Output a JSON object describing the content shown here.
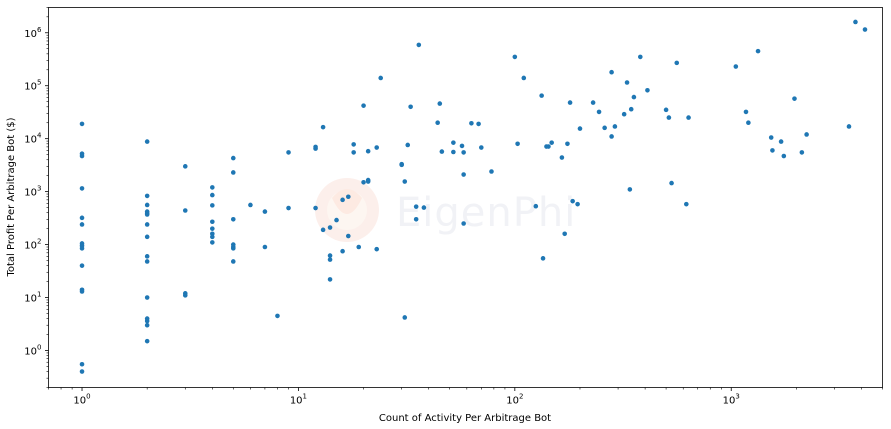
{
  "chart_data": {
    "type": "scatter",
    "title": "",
    "xlabel": "Count of Activity Per Arbitrage Bot",
    "ylabel": "Total Profit Per Arbitrage Bot ($)",
    "xscale": "log",
    "yscale": "log",
    "xlim": [
      0.7,
      5000
    ],
    "ylim": [
      0.2,
      3000000
    ],
    "x_ticks": [
      {
        "value": 1,
        "base": "10",
        "exp": "0"
      },
      {
        "value": 10,
        "base": "10",
        "exp": "1"
      },
      {
        "value": 100,
        "base": "10",
        "exp": "2"
      },
      {
        "value": 1000,
        "base": "10",
        "exp": "3"
      }
    ],
    "y_ticks": [
      {
        "value": 1,
        "base": "10",
        "exp": "0"
      },
      {
        "value": 10,
        "base": "10",
        "exp": "1"
      },
      {
        "value": 100,
        "base": "10",
        "exp": "2"
      },
      {
        "value": 1000,
        "base": "10",
        "exp": "3"
      },
      {
        "value": 10000,
        "base": "10",
        "exp": "4"
      },
      {
        "value": 100000,
        "base": "10",
        "exp": "5"
      },
      {
        "value": 1000000,
        "base": "10",
        "exp": "6"
      }
    ],
    "grid": false,
    "legend": "none",
    "marker_color": "#1f77b4",
    "watermark": "EigenPhi",
    "points": [
      [
        1,
        19000
      ],
      [
        1,
        5200
      ],
      [
        1,
        4700
      ],
      [
        1,
        1150
      ],
      [
        1,
        320
      ],
      [
        1,
        240
      ],
      [
        1,
        105
      ],
      [
        1,
        95
      ],
      [
        1,
        85
      ],
      [
        1,
        40
      ],
      [
        1,
        14
      ],
      [
        1,
        13
      ],
      [
        1,
        0.55
      ],
      [
        1,
        0.4
      ],
      [
        2,
        8800
      ],
      [
        2,
        830
      ],
      [
        2,
        560
      ],
      [
        2,
        420
      ],
      [
        2,
        390
      ],
      [
        2,
        370
      ],
      [
        2,
        240
      ],
      [
        2,
        140
      ],
      [
        2,
        60
      ],
      [
        2,
        48
      ],
      [
        2,
        10
      ],
      [
        2,
        4
      ],
      [
        2,
        3.6
      ],
      [
        2,
        3
      ],
      [
        2,
        1.5
      ],
      [
        3,
        3000
      ],
      [
        3,
        440
      ],
      [
        3,
        12
      ],
      [
        3,
        11
      ],
      [
        4,
        1200
      ],
      [
        4,
        860
      ],
      [
        4,
        550
      ],
      [
        4,
        270
      ],
      [
        4,
        200
      ],
      [
        4,
        160
      ],
      [
        4,
        140
      ],
      [
        4,
        110
      ],
      [
        5,
        4300
      ],
      [
        5,
        2300
      ],
      [
        5,
        300
      ],
      [
        5,
        100
      ],
      [
        5,
        90
      ],
      [
        5,
        85
      ],
      [
        5,
        48
      ],
      [
        6,
        560
      ],
      [
        7,
        420
      ],
      [
        7,
        90
      ],
      [
        8,
        4.5
      ],
      [
        9,
        5500
      ],
      [
        9,
        490
      ],
      [
        12,
        7000
      ],
      [
        12,
        6500
      ],
      [
        12,
        490
      ],
      [
        13,
        16500
      ],
      [
        13,
        190
      ],
      [
        14,
        210
      ],
      [
        14,
        62
      ],
      [
        14,
        52
      ],
      [
        14,
        22
      ],
      [
        15,
        290
      ],
      [
        16,
        700
      ],
      [
        16,
        75
      ],
      [
        17,
        800
      ],
      [
        17,
        145
      ],
      [
        18,
        7800
      ],
      [
        18,
        5500
      ],
      [
        19,
        90
      ],
      [
        20,
        42000
      ],
      [
        20,
        1500
      ],
      [
        21,
        1650
      ],
      [
        21,
        1550
      ],
      [
        21,
        5800
      ],
      [
        23,
        6800
      ],
      [
        23,
        82
      ],
      [
        24,
        140000
      ],
      [
        30,
        3300
      ],
      [
        30,
        3200
      ],
      [
        31,
        1550
      ],
      [
        31,
        4.2
      ],
      [
        32,
        7600
      ],
      [
        33,
        40000
      ],
      [
        35,
        520
      ],
      [
        35,
        300
      ],
      [
        36,
        590000
      ],
      [
        38,
        500
      ],
      [
        44,
        20000
      ],
      [
        45,
        46000
      ],
      [
        46,
        5700
      ],
      [
        52,
        8400
      ],
      [
        52,
        5600
      ],
      [
        57,
        7300
      ],
      [
        58,
        5500
      ],
      [
        58,
        2100
      ],
      [
        58,
        250
      ],
      [
        63,
        19500
      ],
      [
        68,
        19000
      ],
      [
        70,
        6800
      ],
      [
        78,
        2400
      ],
      [
        100,
        350000
      ],
      [
        103,
        8000
      ],
      [
        110,
        140000
      ],
      [
        125,
        530
      ],
      [
        133,
        65000
      ],
      [
        135,
        55
      ],
      [
        140,
        7100
      ],
      [
        143,
        7100
      ],
      [
        148,
        8400
      ],
      [
        165,
        4400
      ],
      [
        170,
        160
      ],
      [
        175,
        8000
      ],
      [
        180,
        48000
      ],
      [
        185,
        660
      ],
      [
        195,
        580
      ],
      [
        200,
        15500
      ],
      [
        230,
        48000
      ],
      [
        245,
        32000
      ],
      [
        260,
        16000
      ],
      [
        280,
        11000
      ],
      [
        280,
        180000
      ],
      [
        290,
        17000
      ],
      [
        320,
        29000
      ],
      [
        330,
        115000
      ],
      [
        340,
        1100
      ],
      [
        345,
        36000
      ],
      [
        355,
        61000
      ],
      [
        380,
        350000
      ],
      [
        410,
        82000
      ],
      [
        500,
        35000
      ],
      [
        515,
        25000
      ],
      [
        530,
        1450
      ],
      [
        560,
        270000
      ],
      [
        620,
        580
      ],
      [
        635,
        25000
      ],
      [
        1050,
        230000
      ],
      [
        1170,
        32000
      ],
      [
        1200,
        20000
      ],
      [
        1330,
        450000
      ],
      [
        1530,
        10500
      ],
      [
        1550,
        6000
      ],
      [
        1700,
        8800
      ],
      [
        1750,
        4700
      ],
      [
        1960,
        57000
      ],
      [
        2120,
        5500
      ],
      [
        2230,
        12000
      ],
      [
        3500,
        17000
      ],
      [
        3750,
        1600000
      ],
      [
        4150,
        1150000
      ]
    ]
  }
}
